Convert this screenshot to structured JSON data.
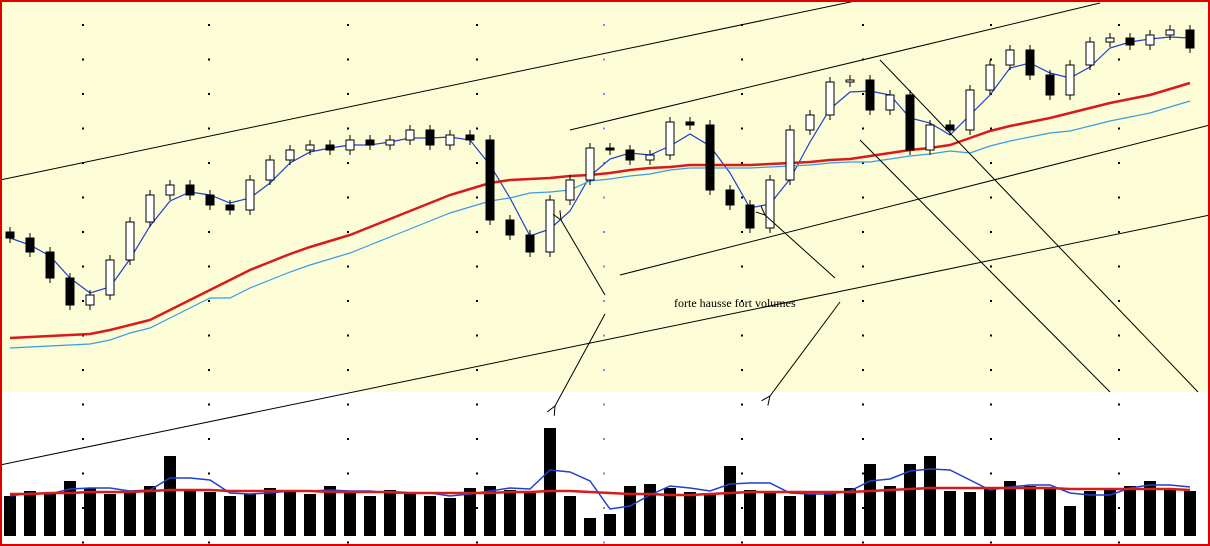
{
  "chart_data": [
    {
      "type": "candlestick",
      "open": [
        160,
        154,
        140,
        114,
        87,
        97,
        132,
        170,
        197,
        207,
        197,
        187,
        182,
        212,
        232,
        242,
        247,
        242,
        252,
        247,
        252,
        262,
        247,
        257,
        252,
        172,
        157,
        140,
        192,
        212,
        244,
        242,
        232,
        237,
        270,
        267,
        202,
        187,
        164,
        212,
        262,
        277,
        310,
        312,
        282,
        297,
        242,
        267,
        262,
        302,
        327,
        342,
        317,
        297,
        327,
        350,
        354,
        347,
        357,
        362
      ],
      "high": [
        165,
        159,
        145,
        119,
        102,
        137,
        175,
        202,
        212,
        212,
        202,
        192,
        217,
        237,
        247,
        252,
        252,
        257,
        257,
        257,
        267,
        267,
        262,
        262,
        257,
        177,
        162,
        197,
        217,
        249,
        249,
        247,
        242,
        275,
        275,
        272,
        207,
        192,
        217,
        267,
        282,
        315,
        317,
        317,
        302,
        302,
        272,
        272,
        307,
        332,
        347,
        347,
        322,
        332,
        355,
        359,
        359,
        362,
        367,
        367
      ],
      "low": [
        149,
        135,
        109,
        82,
        82,
        92,
        127,
        165,
        192,
        192,
        182,
        177,
        177,
        207,
        227,
        237,
        237,
        237,
        242,
        242,
        247,
        242,
        242,
        247,
        167,
        152,
        135,
        135,
        187,
        207,
        237,
        227,
        227,
        232,
        262,
        197,
        182,
        159,
        159,
        207,
        257,
        272,
        305,
        277,
        277,
        237,
        237,
        257,
        257,
        297,
        322,
        312,
        292,
        292,
        322,
        345,
        342,
        342,
        352,
        339
      ],
      "close": [
        154,
        140,
        114,
        87,
        97,
        132,
        170,
        197,
        207,
        197,
        187,
        182,
        212,
        232,
        242,
        247,
        242,
        252,
        247,
        252,
        262,
        247,
        257,
        252,
        172,
        157,
        140,
        192,
        212,
        244,
        242,
        232,
        237,
        270,
        267,
        202,
        187,
        164,
        212,
        262,
        277,
        310,
        312,
        282,
        297,
        242,
        267,
        262,
        302,
        327,
        342,
        317,
        297,
        327,
        350,
        354,
        347,
        357,
        362,
        344
      ],
      "up_color": "#ffffff",
      "down_color": "#000000",
      "ylim": [
        0,
        392
      ],
      "series": [
        {
          "color": "#1f3fd0",
          "values": [
            154,
            147,
            136,
            114,
            99,
            105,
            133,
            166,
            191,
            200,
            197,
            189,
            194,
            209,
            229,
            240,
            244,
            247,
            247,
            250,
            254,
            254,
            255,
            252,
            227,
            194,
            156,
            163,
            181,
            216,
            233,
            239,
            237,
            246,
            258,
            246,
            219,
            184,
            188,
            213,
            250,
            283,
            300,
            301,
            297,
            274,
            269,
            257,
            277,
            297,
            324,
            329,
            319,
            314,
            325,
            344,
            350,
            353,
            355,
            354
          ]
        },
        {
          "color": "#d71a1a",
          "values": [
            54,
            55,
            56,
            57,
            58,
            62,
            67,
            72,
            82,
            92,
            102,
            112,
            122,
            130,
            138,
            145,
            151,
            157,
            165,
            173,
            181,
            189,
            197,
            203,
            209,
            212,
            213,
            214,
            216,
            217,
            219,
            222,
            224,
            225,
            227,
            227,
            227,
            227,
            228,
            229,
            230,
            232,
            233,
            236,
            239,
            242,
            244,
            247,
            254,
            261,
            266,
            270,
            274,
            279,
            284,
            289,
            293,
            297,
            303,
            309
          ]
        },
        {
          "color": "#3a9be8",
          "values": [
            44,
            45,
            46,
            47,
            48,
            52,
            59,
            64,
            74,
            84,
            94,
            94,
            104,
            112,
            120,
            127,
            133,
            139,
            147,
            155,
            163,
            171,
            179,
            185,
            191,
            194,
            199,
            200,
            202,
            211,
            213,
            216,
            218,
            222,
            224,
            224,
            224,
            224,
            225,
            226,
            227,
            229,
            230,
            230,
            233,
            236,
            238,
            241,
            239,
            246,
            251,
            255,
            259,
            261,
            266,
            271,
            275,
            279,
            285,
            291
          ]
        }
      ],
      "trendlines": [
        {
          "x": [
            -0.5,
            42.5
          ],
          "y": [
            212,
            392
          ]
        },
        {
          "x": [
            28,
            54.5
          ],
          "y": [
            262,
            389
          ]
        },
        {
          "x": [
            30.5,
            60
          ],
          "y": [
            117,
            267
          ]
        },
        {
          "x": [
            -0.5,
            60
          ],
          "y": [
            -73,
            177
          ]
        },
        {
          "x": [
            42.5,
            55
          ],
          "y": [
            252,
            0
          ]
        },
        {
          "x": [
            43.5,
            59.4
          ],
          "y": [
            332,
            0
          ]
        }
      ],
      "annotation": "forte hausse fort volumes"
    },
    {
      "type": "bar",
      "color": "#000000",
      "values": [
        40,
        45,
        42,
        55,
        48,
        42,
        45,
        50,
        80,
        45,
        44,
        40,
        42,
        48,
        45,
        42,
        50,
        44,
        40,
        46,
        42,
        40,
        38,
        48,
        50,
        46,
        45,
        108,
        40,
        18,
        22,
        50,
        52,
        48,
        44,
        42,
        70,
        46,
        44,
        40,
        42,
        44,
        48,
        72,
        50,
        72,
        80,
        45,
        44,
        48,
        55,
        50,
        48,
        30,
        45,
        48,
        50,
        55,
        48,
        45
      ],
      "ylim": [
        0,
        150
      ],
      "series": [
        {
          "color": "#1f3fd0",
          "values": [
            40,
            43,
            42,
            47,
            48,
            48,
            45,
            46,
            58,
            58,
            56,
            43,
            42,
            43,
            45,
            45,
            46,
            45,
            45,
            43,
            43,
            43,
            40,
            42,
            45,
            48,
            47,
            66,
            64,
            55,
            27,
            30,
            41,
            50,
            48,
            45,
            52,
            53,
            53,
            43,
            42,
            42,
            45,
            55,
            57,
            65,
            67,
            66,
            56,
            46,
            49,
            51,
            51,
            43,
            41,
            41,
            48,
            51,
            51,
            49
          ]
        },
        {
          "color": "#d71a1a",
          "values": [
            42,
            42,
            43,
            43,
            44,
            44,
            44,
            45,
            46,
            46,
            46,
            45,
            45,
            45,
            45,
            45,
            44,
            44,
            44,
            44,
            43,
            43,
            43,
            43,
            43,
            44,
            44,
            45,
            45,
            44,
            43,
            42,
            42,
            41,
            41,
            42,
            43,
            44,
            44,
            44,
            44,
            44,
            44,
            45,
            46,
            47,
            48,
            48,
            48,
            48,
            48,
            48,
            48,
            47,
            47,
            47,
            47,
            47,
            47,
            46
          ]
        }
      ]
    }
  ]
}
